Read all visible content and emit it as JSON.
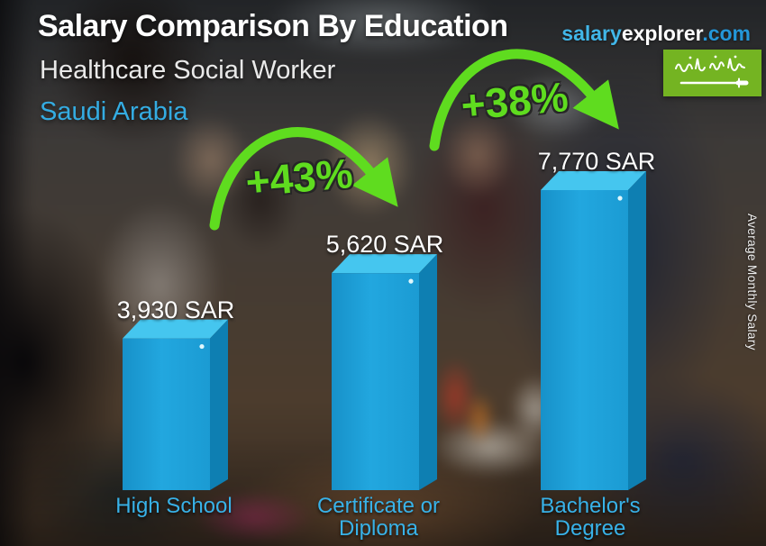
{
  "header": {
    "title": "Salary Comparison By Education",
    "subtitle": "Healthcare Social Worker",
    "country": "Saudi Arabia"
  },
  "branding": {
    "logo_salary": "salary",
    "logo_explorer": "explorer",
    "logo_domain": ".com"
  },
  "flag": {
    "country": "Saudi Arabia",
    "inscription": "لا إله إلا الله محمد رسول الله"
  },
  "chart_data": {
    "type": "bar",
    "title": "Salary Comparison By Education",
    "subtitle": "Healthcare Social Worker",
    "region": "Saudi Arabia",
    "categories": [
      "High School",
      "Certificate or Diploma",
      "Bachelor's Degree"
    ],
    "values": [
      3930,
      5620,
      7770
    ],
    "value_labels": [
      "3,930 SAR",
      "5,620 SAR",
      "7,770 SAR"
    ],
    "currency": "SAR",
    "percent_increase_labels": [
      "+43%",
      "+38%"
    ],
    "ylabel": "Average Monthly Salary",
    "ylim": [
      0,
      8500
    ],
    "legend": "none",
    "grid": false,
    "bar_color": "#22a7df",
    "bar_top_color": "#45c6ef",
    "bar_side_color": "#0e7fb2",
    "accent_green": "#5fdc1f",
    "label_color": "#38b2e8"
  }
}
